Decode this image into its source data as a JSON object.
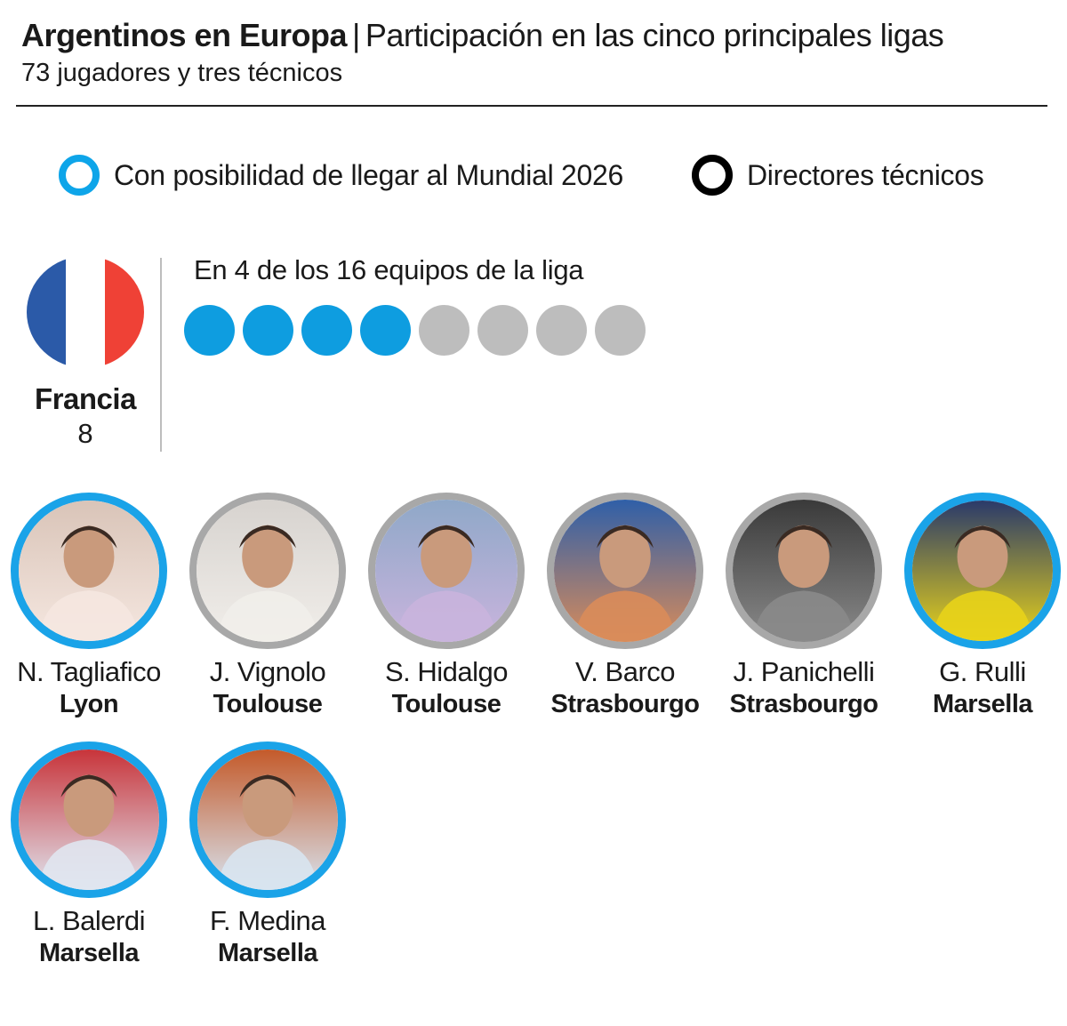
{
  "header": {
    "title_bold": "Argentinos en Europa",
    "separator": "|",
    "title_rest": "Participación en las cinco principales ligas",
    "subtitle": "73 jugadores y tres técnicos"
  },
  "legend": {
    "mundial_label": "Con posibilidad de llegar al Mundial 2026",
    "mundial_color": "#0ea5e9",
    "coach_label": "Directores técnicos",
    "coach_color": "#000000"
  },
  "country": {
    "name": "Francia",
    "count": "8",
    "flag_colors": [
      "#2b5aa8",
      "#ffffff",
      "#ef4136"
    ],
    "teams_label": "En 4 de los 16 equipos de la liga",
    "teams_with_argentines": 4,
    "dots_total": 8,
    "dot_active_color": "#0e9de0",
    "dot_inactive_color": "#bdbdbd"
  },
  "players": [
    {
      "name": "N. Tagliafico",
      "club": "Lyon",
      "mundial": true,
      "photo_icon": "player-photo-icon"
    },
    {
      "name": "J. Vignolo",
      "club": "Toulouse",
      "mundial": false,
      "photo_icon": "player-photo-icon"
    },
    {
      "name": "S. Hidalgo",
      "club": "Toulouse",
      "mundial": false,
      "photo_icon": "player-photo-icon"
    },
    {
      "name": "V. Barco",
      "club": "Strasbourgo",
      "mundial": false,
      "photo_icon": "player-photo-icon"
    },
    {
      "name": "J. Panichelli",
      "club": "Strasbourgo",
      "mundial": false,
      "photo_icon": "player-photo-icon"
    },
    {
      "name": "G. Rulli",
      "club": "Marsella",
      "mundial": true,
      "photo_icon": "player-photo-icon"
    },
    {
      "name": "L. Balerdi",
      "club": "Marsella",
      "mundial": true,
      "photo_icon": "player-photo-icon"
    },
    {
      "name": "F. Medina",
      "club": "Marsella",
      "mundial": true,
      "photo_icon": "player-photo-icon"
    }
  ],
  "colors": {
    "ring_mundial": "#1aa3e8",
    "ring_default": "#a8a8a8"
  }
}
